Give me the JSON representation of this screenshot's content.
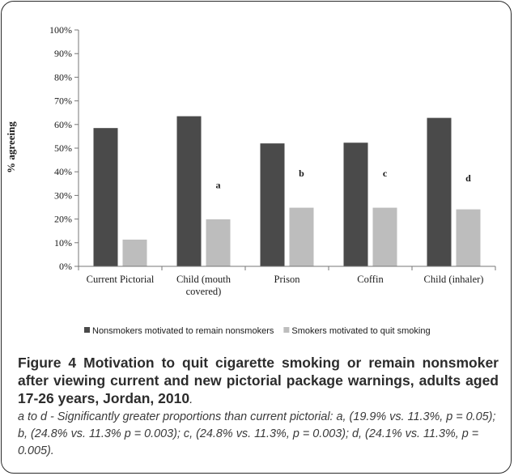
{
  "chart_data": {
    "type": "bar",
    "ylabel": "% agreeing",
    "xlabel": "",
    "ylim": [
      0,
      100
    ],
    "yticks": [
      "0%",
      "10%",
      "20%",
      "30%",
      "40%",
      "50%",
      "60%",
      "70%",
      "80%",
      "90%",
      "100%"
    ],
    "categories": [
      "Current Pictorial",
      "Child (mouth covered)",
      "Prison",
      "Coffin",
      "Child (inhaler)"
    ],
    "category_lines": [
      [
        "Current Pictorial"
      ],
      [
        "Child (mouth",
        "covered)"
      ],
      [
        "Prison"
      ],
      [
        "Coffin"
      ],
      [
        "Child (inhaler)"
      ]
    ],
    "series": [
      {
        "name": "Nonsmokers motivated to remain nonsmokers",
        "color": "#4a4a4a",
        "values": [
          58.5,
          63.5,
          52,
          52.3,
          62.8
        ]
      },
      {
        "name": "Smokers motivated to quit smoking",
        "color": "#bdbdbd",
        "values": [
          11.3,
          19.9,
          24.8,
          24.8,
          24.1
        ]
      }
    ],
    "annotations": [
      "",
      "a",
      "b",
      "c",
      "d"
    ],
    "annotation_values": [
      null,
      33,
      38,
      38,
      36
    ],
    "legend_position": "bottom",
    "grid": false
  },
  "caption": {
    "figure_label": "Figure 4",
    "title": "Motivation to quit cigarette smoking or remain nonsmoker after viewing current and new pictorial package warnings, adults aged 17-26 years, Jordan, 2010",
    "note": "a to d - Significantly greater proportions than current pictorial: a, (19.9% vs. 11.3%, p = 0.05); b, (24.8% vs. 11.3% p = 0.003); c, (24.8% vs. 11.3%, p = 0.003); d, (24.1% vs. 11.3%, p = 0.005)."
  }
}
